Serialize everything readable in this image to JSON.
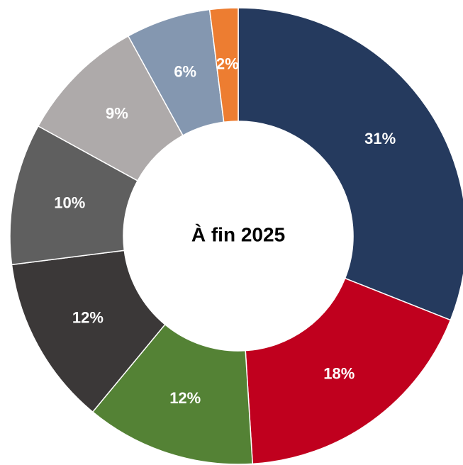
{
  "chart_data": {
    "type": "donut",
    "title": "À fin 2025",
    "values": [
      31,
      18,
      12,
      12,
      10,
      9,
      6,
      2
    ],
    "value_labels": [
      "31%",
      "18%",
      "12%",
      "12%",
      "10%",
      "9%",
      "6%",
      "2%"
    ],
    "colors": [
      "#253a5e",
      "#c0001e",
      "#548235",
      "#3b3838",
      "#5f5f5f",
      "#aeaaaa",
      "#8497b0",
      "#ed7d31"
    ]
  }
}
